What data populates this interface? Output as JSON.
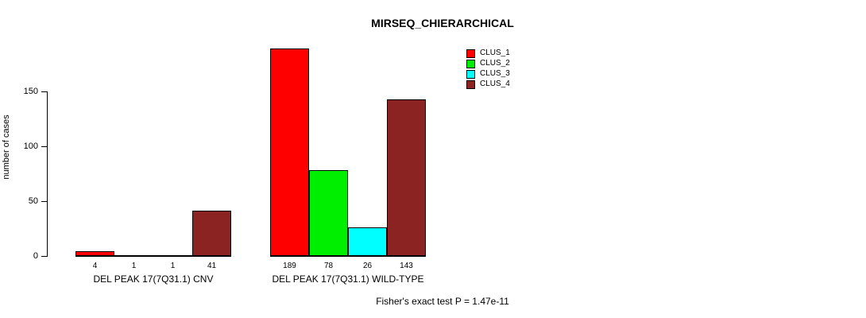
{
  "title": "MIRSEQ_CHIERARCHICAL",
  "footer": "Fisher's exact test P = 1.47e-11",
  "chart_data": {
    "type": "bar",
    "title": "MIRSEQ_CHIERARCHICAL",
    "ylabel": "number of cases",
    "xlabel": "",
    "yticks": [
      0,
      50,
      100,
      150
    ],
    "ylim": [
      0,
      195
    ],
    "grid": false,
    "legend_position": "top-right",
    "series_names": [
      "CLUS_1",
      "CLUS_2",
      "CLUS_3",
      "CLUS_4"
    ],
    "series_colors": [
      "#FF0000",
      "#00EE00",
      "#00FFFF",
      "#8B2323"
    ],
    "groups": [
      {
        "label": "DEL PEAK 17(7Q31.1) CNV",
        "values": [
          4,
          1,
          1,
          41
        ]
      },
      {
        "label": "DEL PEAK 17(7Q31.1) WILD-TYPE",
        "values": [
          189,
          78,
          26,
          143
        ]
      }
    ],
    "annotation": "Fisher's exact test P = 1.47e-11"
  }
}
